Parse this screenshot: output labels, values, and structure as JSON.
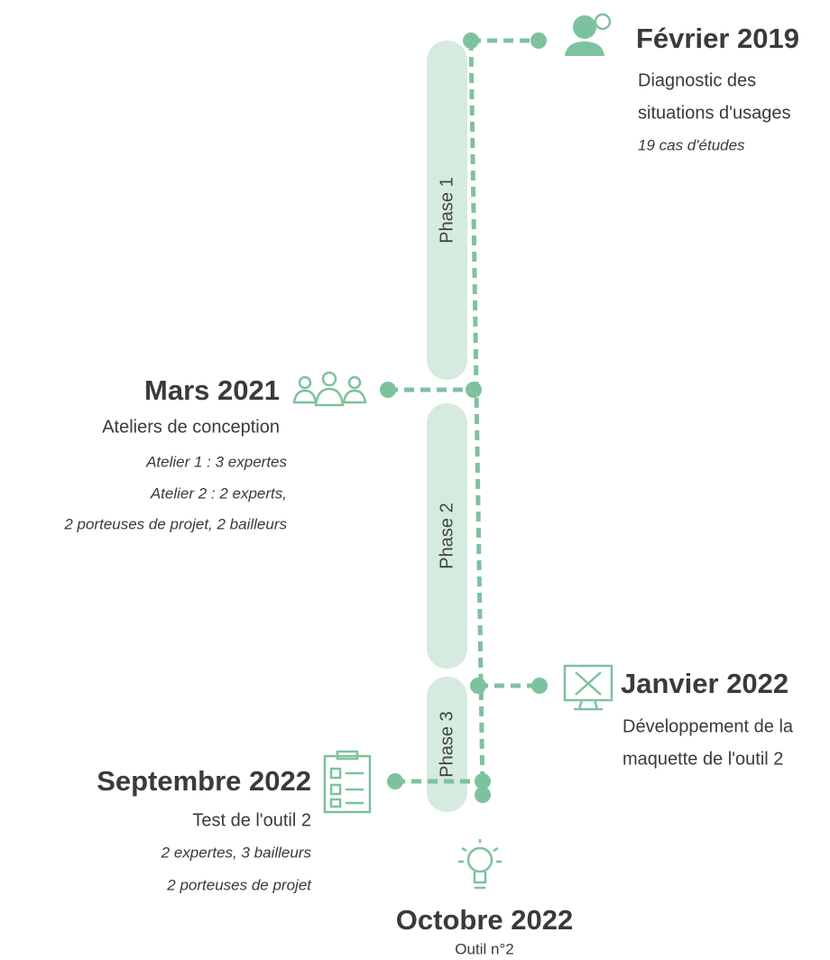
{
  "phases": [
    "Phase 1",
    "Phase 2",
    "Phase 3"
  ],
  "events": [
    {
      "date": "Février 2019",
      "lines": [
        "Diagnostic des",
        "situations d'usages"
      ],
      "details": [
        "19 cas d'études"
      ]
    },
    {
      "date": "Mars 2021",
      "lines": [
        "Ateliers de conception"
      ],
      "details": [
        "Atelier 1 : 3 expertes",
        "Atelier 2 : 2 experts,",
        "2 porteuses de projet, 2 bailleurs"
      ]
    },
    {
      "date": "Janvier 2022",
      "lines": [
        "Développement de la",
        "maquette de l'outil 2"
      ],
      "details": []
    },
    {
      "date": "Septembre 2022",
      "lines": [
        "Test de l'outil 2"
      ],
      "details": [
        "2 expertes, 3 bailleurs",
        "2 porteuses de projet"
      ]
    }
  ],
  "final": {
    "date": "Octobre 2022",
    "label": "Outil n°2"
  }
}
